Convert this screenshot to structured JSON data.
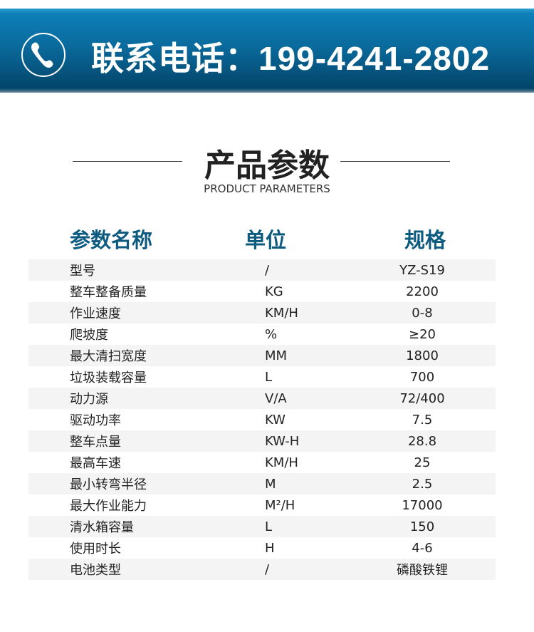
{
  "banner": {
    "icon": "phone-icon",
    "text": "联系电话：199-4241-2802"
  },
  "title": "产品参数",
  "subtitle": "PRODUCT PARAMETERS",
  "headers": [
    "参数名称",
    "单位",
    "规格"
  ],
  "rows": [
    [
      "型号",
      "/",
      "YZ-S19"
    ],
    [
      "整车整备质量",
      "KG",
      "2200"
    ],
    [
      "作业速度",
      "KM/H",
      "0-8"
    ],
    [
      "爬坡度",
      "%",
      "≥20"
    ],
    [
      "最大清扫宽度",
      "MM",
      "1800"
    ],
    [
      "垃圾装载容量",
      "L",
      "700"
    ],
    [
      "动力源",
      "V/A",
      "72/400"
    ],
    [
      "驱动功率",
      "KW",
      "7.5"
    ],
    [
      "整车点量",
      "KW-H",
      "28.8"
    ],
    [
      "最高车速",
      "KM/H",
      "25"
    ],
    [
      "最小转弯半径",
      "M",
      "2.5"
    ],
    [
      "最大作业能力",
      "M²/H",
      "17000"
    ],
    [
      "清水箱容量",
      "L",
      "150"
    ],
    [
      "使用时长",
      "H",
      "4-6"
    ],
    [
      "电池类型",
      "/",
      "磷酸铁锂"
    ]
  ]
}
